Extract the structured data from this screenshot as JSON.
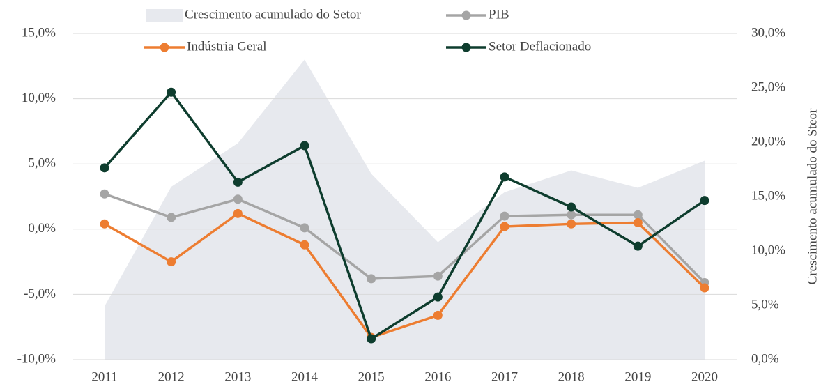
{
  "chart_data": {
    "type": "line",
    "categories": [
      "2011",
      "2012",
      "2013",
      "2014",
      "2015",
      "2016",
      "2017",
      "2018",
      "2019",
      "2020"
    ],
    "series": [
      {
        "name": "Crescimento acumulado do Setor",
        "color": "#e7e9ee",
        "axis": "y2",
        "kind": "area",
        "values": [
          4.9,
          15.9,
          19.9,
          27.6,
          17.1,
          10.8,
          15.4,
          17.4,
          15.8,
          18.3
        ]
      },
      {
        "name": "PIB",
        "color": "#a5a5a5",
        "values": [
          2.7,
          0.9,
          2.3,
          0.1,
          -3.8,
          -3.6,
          1.0,
          1.1,
          1.1,
          -4.1
        ]
      },
      {
        "name": "Indústria Geral",
        "color": "#ed7d31",
        "values": [
          0.4,
          -2.5,
          1.2,
          -1.2,
          -8.3,
          -6.6,
          0.2,
          0.4,
          0.5,
          -4.5
        ]
      },
      {
        "name": "Setor Deflacionado",
        "color": "#0e3d2e",
        "values": [
          4.7,
          10.5,
          3.6,
          6.4,
          -8.4,
          -5.2,
          4.0,
          1.7,
          -1.3,
          2.2
        ]
      }
    ],
    "ylim": [
      -10,
      15
    ],
    "yticks": [
      {
        "value": -10,
        "label": "-10,0%"
      },
      {
        "value": -5,
        "label": "-5,0%"
      },
      {
        "value": 0,
        "label": "0,0%"
      },
      {
        "value": 5,
        "label": "5,0%"
      },
      {
        "value": 10,
        "label": "10,0%"
      },
      {
        "value": 15,
        "label": "15,0%"
      }
    ],
    "y2lim": [
      0,
      30
    ],
    "y2ticks": [
      {
        "value": 0,
        "label": "0,0%"
      },
      {
        "value": 5,
        "label": "5,0%"
      },
      {
        "value": 10,
        "label": "10,0%"
      },
      {
        "value": 15,
        "label": "15,0%"
      },
      {
        "value": 20,
        "label": "20,0%"
      },
      {
        "value": 25,
        "label": "25,0%"
      },
      {
        "value": 30,
        "label": "30,0%"
      }
    ],
    "y2label": "Crescimento acumulado do Steor",
    "grid": true,
    "legend": "top"
  }
}
